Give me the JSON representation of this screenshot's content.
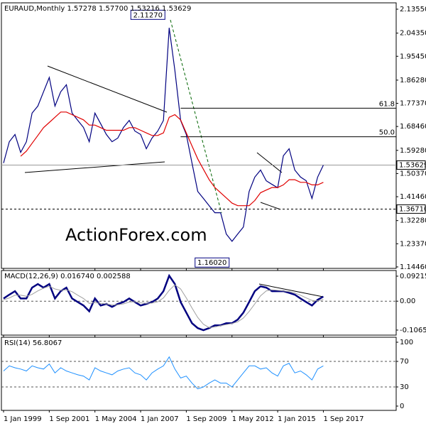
{
  "chart_data": [
    {
      "type": "line",
      "title": "EURAUD,Monthly  1.57278 1.57700 1.53216 1.53629",
      "watermark": "ActionForex.com",
      "x": [
        0,
        4,
        8,
        12,
        16,
        20,
        24,
        28,
        32,
        36,
        40,
        44,
        48,
        52,
        56,
        60,
        64,
        68,
        72,
        76,
        80,
        84,
        88,
        92,
        96,
        100,
        104,
        108,
        112,
        116,
        120,
        124,
        128,
        132,
        136,
        140,
        144,
        148,
        152,
        156,
        160,
        164,
        168,
        172,
        176,
        180,
        184,
        188,
        192,
        196,
        200,
        204,
        208,
        212,
        216,
        220,
        224
      ],
      "series": [
        {
          "color": "#000080",
          "values": [
            1.544,
            1.626,
            1.654,
            1.585,
            1.626,
            1.736,
            1.763,
            1.818,
            1.873,
            1.763,
            1.818,
            1.845,
            1.736,
            1.708,
            1.681,
            1.626,
            1.736,
            1.695,
            1.654,
            1.626,
            1.64,
            1.681,
            1.708,
            1.667,
            1.654,
            1.599,
            1.64,
            1.667,
            1.708,
            2.064,
            1.9,
            1.708,
            1.654,
            1.544,
            1.435,
            1.408,
            1.38,
            1.353,
            1.353,
            1.271,
            1.243,
            1.271,
            1.298,
            1.435,
            1.49,
            1.517,
            1.476,
            1.462,
            1.449,
            1.572,
            1.599,
            1.517,
            1.49,
            1.476,
            1.408,
            1.49,
            1.536
          ]
        },
        {
          "color": "#e00000",
          "values": [
            null,
            null,
            null,
            1.57,
            1.59,
            1.62,
            1.65,
            1.68,
            1.7,
            1.72,
            1.74,
            1.74,
            1.73,
            1.72,
            1.71,
            1.69,
            1.69,
            1.68,
            1.67,
            1.67,
            1.67,
            1.67,
            1.68,
            1.68,
            1.67,
            1.66,
            1.65,
            1.65,
            1.66,
            1.72,
            1.73,
            1.71,
            1.66,
            1.61,
            1.56,
            1.52,
            1.48,
            1.45,
            1.43,
            1.41,
            1.39,
            1.38,
            1.38,
            1.38,
            1.4,
            1.43,
            1.44,
            1.45,
            1.45,
            1.46,
            1.48,
            1.48,
            1.47,
            1.47,
            1.46,
            1.46,
            1.47
          ]
        }
      ],
      "xlim": [
        -1.5,
        275
      ],
      "ylim": [
        1.139,
        2.16
      ],
      "yticks": [
        {
          "value": 2.1355,
          "label": "2.13550"
        },
        {
          "value": 2.0435,
          "label": "2.04350"
        },
        {
          "value": 1.9545,
          "label": "1.95450"
        },
        {
          "value": 1.8628,
          "label": "1.86280"
        },
        {
          "value": 1.7737,
          "label": "1.77370"
        },
        {
          "value": 1.6846,
          "label": "1.68460"
        },
        {
          "value": 1.5928,
          "label": "1.59280"
        },
        {
          "value": 1.5037,
          "label": "1.50370"
        },
        {
          "value": 1.4146,
          "label": "1.41460"
        },
        {
          "value": 1.3228,
          "label": "1.32280"
        },
        {
          "value": 1.2337,
          "label": "1.23370"
        },
        {
          "value": 1.1446,
          "label": "1.14460"
        }
      ],
      "levels": [
        {
          "value": 1.755,
          "label": "61.8"
        },
        {
          "value": 1.645,
          "label": "50.0"
        }
      ],
      "price_lines": [
        {
          "value": 1.53629,
          "label": "1.53629",
          "style": "solid"
        },
        {
          "value": 1.3671,
          "label": "1.36710",
          "style": "dashed"
        }
      ],
      "point_labels": [
        {
          "x": 116,
          "value": 2.1127,
          "label": "2.11270"
        },
        {
          "x": 159,
          "value": 1.1602,
          "label": "1.16020"
        }
      ]
    },
    {
      "type": "line",
      "title": "MACD(12,26,9) 0.016740 0.002588",
      "x": [
        0,
        4,
        8,
        12,
        16,
        20,
        24,
        28,
        32,
        36,
        40,
        44,
        48,
        52,
        56,
        60,
        64,
        68,
        72,
        76,
        80,
        84,
        88,
        92,
        96,
        100,
        104,
        108,
        112,
        116,
        120,
        124,
        128,
        132,
        136,
        140,
        144,
        148,
        152,
        156,
        160,
        164,
        168,
        172,
        176,
        180,
        184,
        188,
        192,
        196,
        200,
        204,
        208,
        212,
        216,
        220,
        224
      ],
      "series": [
        {
          "color": "#000080",
          "width": 2.5,
          "values": [
            0.01,
            0.024,
            0.037,
            0.01,
            0.01,
            0.05,
            0.063,
            0.05,
            0.063,
            0.01,
            0.037,
            0.05,
            0.01,
            -0.003,
            -0.016,
            -0.037,
            0.01,
            -0.016,
            -0.01,
            -0.021,
            -0.01,
            -0.003,
            0.01,
            -0.003,
            -0.016,
            -0.01,
            -0.003,
            0.01,
            0.037,
            0.094,
            0.063,
            -0.003,
            -0.042,
            -0.081,
            -0.099,
            -0.107,
            -0.099,
            -0.089,
            -0.089,
            -0.081,
            -0.081,
            -0.068,
            -0.042,
            -0.003,
            0.037,
            0.055,
            0.05,
            0.037,
            0.037,
            0.037,
            0.031,
            0.024,
            0.01,
            -0.003,
            -0.016,
            0.005,
            0.017
          ]
        },
        {
          "color": "#a0a0a0",
          "width": 1,
          "values": [
            0.005,
            0.012,
            0.022,
            0.022,
            0.018,
            0.025,
            0.038,
            0.048,
            0.055,
            0.045,
            0.04,
            0.042,
            0.035,
            0.022,
            0.01,
            -0.008,
            -0.005,
            -0.008,
            -0.01,
            -0.014,
            -0.013,
            -0.01,
            -0.003,
            -0.002,
            -0.006,
            -0.008,
            -0.007,
            -0.002,
            0.012,
            0.04,
            0.06,
            0.045,
            0.012,
            -0.025,
            -0.06,
            -0.085,
            -0.097,
            -0.095,
            -0.09,
            -0.086,
            -0.082,
            -0.076,
            -0.062,
            -0.038,
            -0.01,
            0.02,
            0.038,
            0.042,
            0.04,
            0.038,
            0.035,
            0.03,
            0.022,
            0.012,
            0.003,
            0.001,
            0.006
          ]
        }
      ],
      "xlim": [
        -1.5,
        275
      ],
      "ylim": [
        -0.125,
        0.113
      ],
      "yticks": [
        0.092158,
        {
          "value": 0,
          "label": "0.00"
        },
        -0.106503
      ],
      "dashed_ticks": [
        1
      ]
    },
    {
      "type": "line",
      "title": "RSI(14) 56.8067",
      "x": [
        0,
        4,
        8,
        12,
        16,
        20,
        24,
        28,
        32,
        36,
        40,
        44,
        48,
        52,
        56,
        60,
        64,
        68,
        72,
        76,
        80,
        84,
        88,
        92,
        96,
        100,
        104,
        108,
        112,
        116,
        120,
        124,
        128,
        132,
        136,
        140,
        144,
        148,
        152,
        156,
        160,
        164,
        168,
        172,
        176,
        180,
        184,
        188,
        192,
        196,
        200,
        204,
        208,
        212,
        216,
        220,
        224
      ],
      "series": [
        {
          "color": "#1e90ff",
          "width": 1,
          "values": [
            55,
            63,
            60,
            58,
            55,
            63,
            60,
            58,
            66,
            52,
            60,
            55,
            52,
            49,
            47,
            41,
            60,
            55,
            52,
            49,
            55,
            58,
            60,
            52,
            49,
            41,
            52,
            58,
            63,
            77,
            58,
            44,
            47,
            36,
            27,
            30,
            36,
            41,
            36,
            36,
            30,
            41,
            52,
            63,
            63,
            58,
            60,
            52,
            47,
            63,
            67,
            52,
            55,
            49,
            41,
            58,
            63
          ]
        }
      ],
      "xlim": [
        -1.5,
        275
      ],
      "ylim": [
        -6.7,
        107.8
      ],
      "yticks": [
        100,
        70,
        30,
        0
      ],
      "dashed_ticks": [
        1,
        2
      ],
      "xticks": [
        {
          "value": 0,
          "label": "1 Jan 1999"
        },
        {
          "value": 32,
          "label": "1 Sep 2001"
        },
        {
          "value": 64,
          "label": "1 May 2004"
        },
        {
          "value": 96,
          "label": "1 Jan 2007"
        },
        {
          "value": 128,
          "label": "1 Sep 2009"
        },
        {
          "value": 160,
          "label": "1 May 2012"
        },
        {
          "value": 192,
          "label": "1 Jan 2015"
        },
        {
          "value": 224,
          "label": "1 Sep 2017"
        }
      ]
    }
  ]
}
